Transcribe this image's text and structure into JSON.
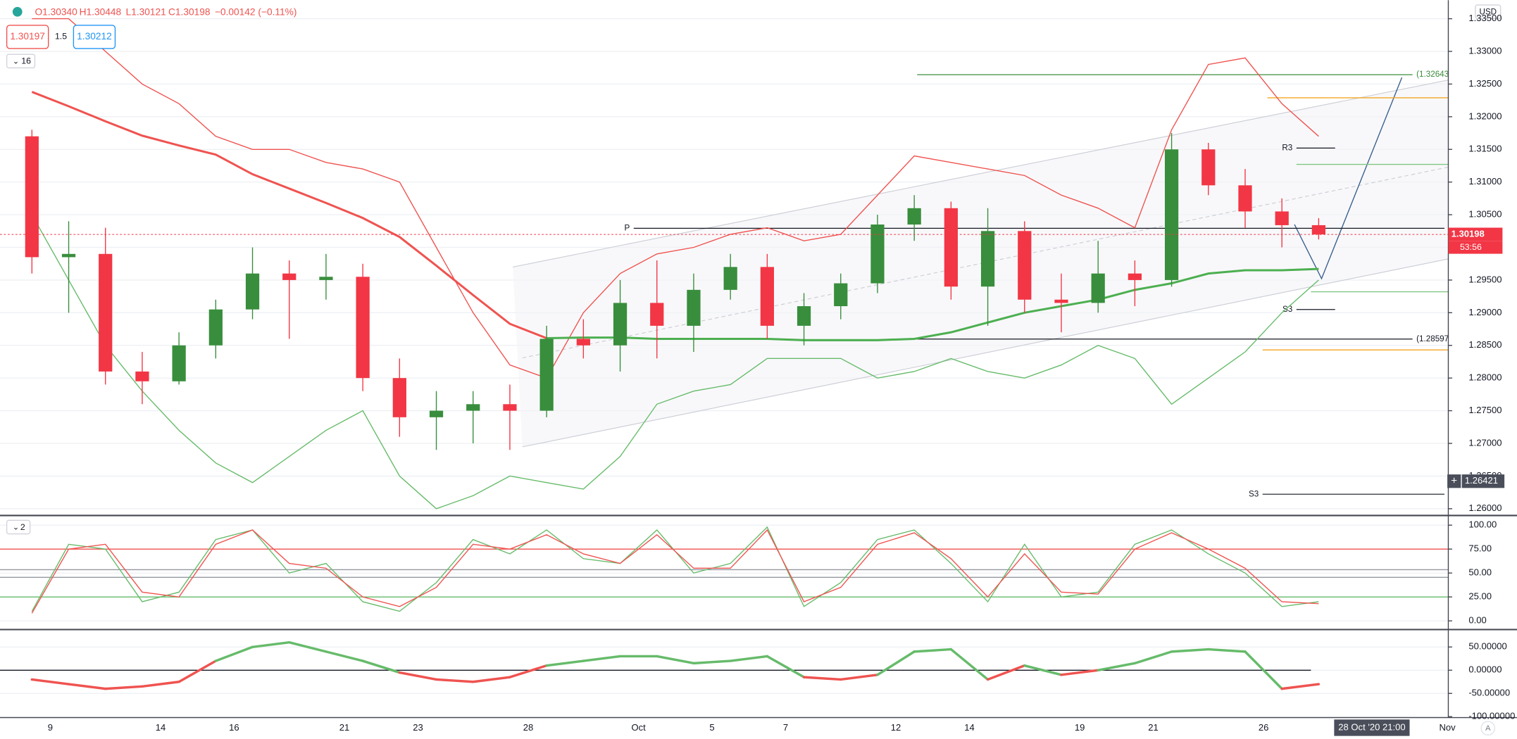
{
  "header": {
    "open": "O1.30340",
    "high": "H1.30448",
    "low": "L1.30121",
    "close": "C1.30198",
    "change": "−0.00142 (−0.11%)",
    "sell": "1.30197",
    "spread": "1.5",
    "buy": "1.30212",
    "main_toggle": "16",
    "pane_toggle": "2",
    "currency": "USD",
    "cursor_time": "28 Oct '20 21:00",
    "auto": "A"
  },
  "chart_data": [
    {
      "type": "candlestick",
      "categories": [
        null,
        "9",
        null,
        null,
        "14",
        null,
        "16",
        null,
        null,
        "21",
        null,
        "23",
        null,
        null,
        "28",
        null,
        null,
        "Oct",
        null,
        "5",
        null,
        "7",
        null,
        null,
        "12",
        null,
        "14",
        null,
        null,
        "19",
        null,
        "21",
        null,
        null,
        "26",
        null,
        null,
        null,
        null,
        "Nov"
      ],
      "candles": [
        [
          1.317,
          1.318,
          1.296,
          1.2985
        ],
        [
          1.2985,
          1.304,
          1.29,
          1.299
        ],
        [
          1.299,
          1.303,
          1.279,
          1.281
        ],
        [
          1.281,
          1.284,
          1.276,
          1.2795
        ],
        [
          1.2795,
          1.287,
          1.279,
          1.285
        ],
        [
          1.285,
          1.292,
          1.283,
          1.2905
        ],
        [
          1.2905,
          1.3,
          1.289,
          1.296
        ],
        [
          1.296,
          1.298,
          1.286,
          1.295
        ],
        [
          1.295,
          1.299,
          1.292,
          1.2955
        ],
        [
          1.2955,
          1.2975,
          1.278,
          1.28
        ],
        [
          1.28,
          1.283,
          1.271,
          1.274
        ],
        [
          1.274,
          1.278,
          1.269,
          1.275
        ],
        [
          1.275,
          1.278,
          1.27,
          1.276
        ],
        [
          1.276,
          1.279,
          1.269,
          1.275
        ],
        [
          1.275,
          1.288,
          1.274,
          1.286
        ],
        [
          1.286,
          1.289,
          1.283,
          1.285
        ],
        [
          1.285,
          1.295,
          1.281,
          1.2915
        ],
        [
          1.2915,
          1.298,
          1.283,
          1.288
        ],
        [
          1.288,
          1.296,
          1.284,
          1.2935
        ],
        [
          1.2935,
          1.299,
          1.292,
          1.297
        ],
        [
          1.297,
          1.299,
          1.286,
          1.288
        ],
        [
          1.288,
          1.293,
          1.285,
          1.291
        ],
        [
          1.291,
          1.296,
          1.289,
          1.2945
        ],
        [
          1.2945,
          1.305,
          1.293,
          1.3035
        ],
        [
          1.3035,
          1.308,
          1.301,
          1.306
        ],
        [
          1.306,
          1.307,
          1.292,
          1.294
        ],
        [
          1.294,
          1.306,
          1.288,
          1.3025
        ],
        [
          1.3025,
          1.304,
          1.29,
          1.292
        ],
        [
          1.292,
          1.296,
          1.287,
          1.2915
        ],
        [
          1.2915,
          1.301,
          1.29,
          1.296
        ],
        [
          1.296,
          1.298,
          1.291,
          1.295
        ],
        [
          1.295,
          1.3175,
          1.294,
          1.315
        ],
        [
          1.315,
          1.316,
          1.308,
          1.3095
        ],
        [
          1.3095,
          1.312,
          1.303,
          1.3055
        ],
        [
          1.3055,
          1.3075,
          1.3,
          1.3034
        ],
        [
          1.3034,
          1.30448,
          1.30121,
          1.30198
        ],
        null,
        null,
        null,
        null
      ],
      "up_color": "#388e3c",
      "down_color": "#f23645",
      "series": [
        {
          "color": "#ef5350",
          "values": [
            1.335,
            1.335,
            1.33,
            1.325,
            1.322,
            1.317,
            1.315,
            1.315,
            1.313,
            1.312,
            1.31,
            1.3,
            1.29,
            1.282,
            1.28,
            1.29,
            1.296,
            1.299,
            1.3,
            1.302,
            1.303,
            1.301,
            1.302,
            1.308,
            1.314,
            1.313,
            1.312,
            1.311,
            1.308,
            1.306,
            1.303,
            1.318,
            1.328,
            1.329,
            1.322,
            1.317,
            null,
            null,
            null,
            null
          ]
        },
        {
          "color": "#ef5350",
          "values": [
            1.3238,
            1.3216,
            1.3193,
            1.3171,
            1.3156,
            1.3142,
            1.3112,
            1.309,
            1.3068,
            1.3045,
            1.3016,
            1.2972,
            1.2927,
            1.2883,
            1.2861,
            null,
            null,
            null,
            null,
            null,
            null,
            null,
            null,
            null,
            null,
            null,
            null,
            null,
            null,
            null,
            null,
            null,
            null,
            null,
            null,
            null,
            null,
            null,
            null,
            null
          ]
        },
        {
          "color": "#4caf50",
          "values": [
            null,
            null,
            null,
            null,
            null,
            null,
            null,
            null,
            null,
            null,
            null,
            null,
            null,
            null,
            1.2861,
            1.2862,
            1.2862,
            1.286,
            1.286,
            1.286,
            1.286,
            1.2858,
            1.2858,
            1.2858,
            1.286,
            1.287,
            1.2885,
            1.29,
            1.291,
            1.292,
            1.2935,
            1.2945,
            1.296,
            1.2965,
            1.2965,
            1.2967,
            null,
            null,
            null,
            null
          ]
        },
        {
          "color": "#66bb6a",
          "values": [
            1.305,
            1.295,
            1.285,
            1.278,
            1.272,
            1.267,
            1.264,
            1.268,
            1.272,
            1.275,
            1.265,
            1.26,
            1.262,
            1.265,
            1.264,
            1.263,
            1.268,
            1.276,
            1.278,
            1.279,
            1.283,
            1.283,
            1.283,
            1.28,
            1.281,
            1.283,
            1.281,
            1.28,
            1.282,
            1.285,
            1.283,
            1.276,
            1.28,
            1.284,
            1.29,
            1.295,
            null,
            null,
            null,
            null
          ]
        }
      ],
      "levels": [
        {
          "label": "(1.32643)",
          "value": 1.32643,
          "color": "#3b8c3b"
        },
        {
          "label": "(1.28597)",
          "value": 1.28597,
          "color": "#131722"
        },
        {
          "label": "P",
          "value": 1.30292,
          "color": "#131722"
        },
        {
          "label": "R3",
          "value": 1.3152,
          "color": "#131722"
        },
        {
          "label": "S3",
          "value": 1.29049,
          "color": "#131722"
        },
        {
          "label": "S3",
          "value": 1.26222,
          "color": "#131722"
        }
      ],
      "lines": [
        {
          "value": 1.3229,
          "color": "#f5a623"
        },
        {
          "value": 1.2843,
          "color": "#f5a623"
        },
        {
          "value": 1.3127,
          "color": "#81c784"
        },
        {
          "value": 1.2932,
          "color": "#81c784"
        }
      ],
      "last_price": 1.30198,
      "countdown": "53:56",
      "cursor_price": 1.26421,
      "ylim": [
        1.25911,
        1.33784
      ],
      "yticks": [
        {
          "value": 1.26,
          "label": "1.26000"
        },
        {
          "value": 1.265,
          "label": "1.26500"
        },
        {
          "value": 1.27,
          "label": "1.27000"
        },
        {
          "value": 1.275,
          "label": "1.27500"
        },
        {
          "value": 1.28,
          "label": "1.28000"
        },
        {
          "value": 1.285,
          "label": "1.28500"
        },
        {
          "value": 1.29,
          "label": "1.29000"
        },
        {
          "value": 1.295,
          "label": "1.29500"
        },
        {
          "value": 1.3,
          "label": "1.30000"
        },
        {
          "value": 1.305,
          "label": "1.30500"
        },
        {
          "value": 1.31,
          "label": "1.31000"
        },
        {
          "value": 1.315,
          "label": "1.31500"
        },
        {
          "value": 1.32,
          "label": "1.32000"
        },
        {
          "value": 1.325,
          "label": "1.32500"
        },
        {
          "value": 1.33,
          "label": "1.33000"
        },
        {
          "value": 1.335,
          "label": "1.33500"
        }
      ],
      "grid": true
    },
    {
      "type": "line",
      "series": [
        {
          "color": "#66bb6a",
          "values": [
            10,
            80,
            75,
            20,
            30,
            85,
            95,
            50,
            60,
            20,
            10,
            40,
            85,
            70,
            95,
            65,
            60,
            95,
            50,
            60,
            98,
            15,
            40,
            85,
            95,
            60,
            20,
            80,
            25,
            30,
            80,
            95,
            70,
            50,
            15,
            20,
            null,
            null,
            null,
            null
          ]
        },
        {
          "color": "#ef5350",
          "values": [
            8,
            75,
            80,
            30,
            25,
            80,
            95,
            60,
            55,
            25,
            15,
            35,
            80,
            75,
            90,
            70,
            60,
            90,
            55,
            55,
            95,
            20,
            35,
            80,
            92,
            65,
            25,
            70,
            30,
            28,
            75,
            92,
            75,
            55,
            20,
            18,
            null,
            null,
            null,
            null
          ]
        }
      ],
      "hlines": [
        {
          "value": 75,
          "color": "#ef5350"
        },
        {
          "value": 53.5,
          "color": "#9598a1"
        },
        {
          "value": 45.5,
          "color": "#9598a1"
        },
        {
          "value": 25,
          "color": "#66bb6a"
        }
      ],
      "ylim": [
        -8.1,
        110.1
      ],
      "yticks": [
        {
          "value": 0,
          "label": "0.00"
        },
        {
          "value": 25,
          "label": "25.00"
        },
        {
          "value": 50,
          "label": "50.00"
        },
        {
          "value": 75,
          "label": "75.00"
        },
        {
          "value": 100,
          "label": "100.00"
        }
      ],
      "grid": true
    },
    {
      "type": "momentum",
      "series": [
        {
          "positive_color": "#66bb6a",
          "negative_color": "#ef5350",
          "values": [
            -20,
            -30,
            -40,
            -35,
            -25,
            20,
            50,
            60,
            40,
            20,
            -5,
            -20,
            -25,
            -15,
            10,
            20,
            30,
            30,
            15,
            20,
            30,
            -15,
            -20,
            -10,
            40,
            45,
            -20,
            10,
            -10,
            0,
            15,
            40,
            45,
            40,
            -40,
            -30,
            null,
            null,
            null,
            null
          ]
        }
      ],
      "hlines": [
        {
          "value": 0,
          "color": "#131722"
        }
      ],
      "ylim": [
        -102,
        87.5
      ],
      "yticks": [
        {
          "value": -100,
          "label": "-100.00000"
        },
        {
          "value": -50,
          "label": "-50.00000"
        },
        {
          "value": 0,
          "label": "0.00000"
        },
        {
          "value": 50,
          "label": "50.00000"
        }
      ],
      "grid": true
    }
  ]
}
